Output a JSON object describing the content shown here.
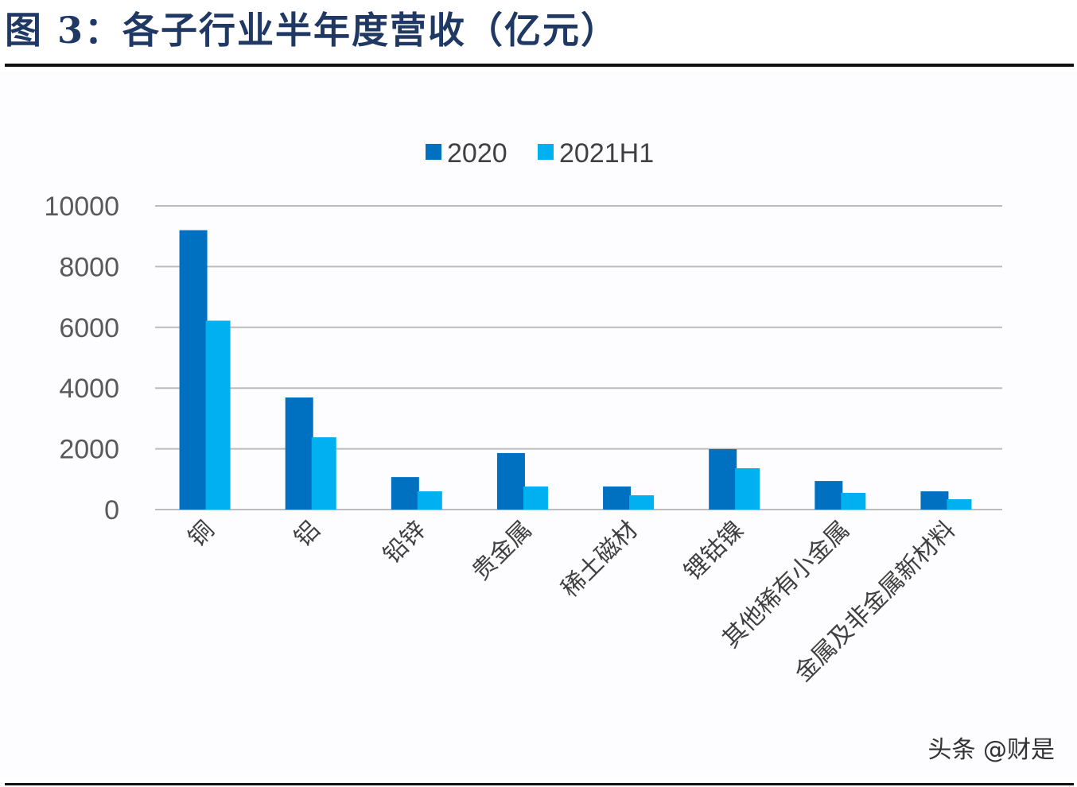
{
  "title": "图 3：各子行业半年度营收（亿元）",
  "watermark": "头条 @财是",
  "chart_data": {
    "type": "bar",
    "title": "",
    "xlabel": "",
    "ylabel": "",
    "ylim": [
      0,
      10000
    ],
    "yticks": [
      "0",
      "2000",
      "4000",
      "6000",
      "8000",
      "10000"
    ],
    "grid": true,
    "legend": "top-center",
    "categories": [
      "铜",
      "铝",
      "铅锌",
      "贵金属",
      "稀土磁材",
      "锂钴镍",
      "其他稀有小金属",
      "金属及非金属新材料"
    ],
    "series": [
      {
        "name": "2020",
        "color": "#0070C0",
        "values": [
          9200,
          3690,
          1070,
          1860,
          760,
          1990,
          940,
          600
        ]
      },
      {
        "name": "2021H1",
        "color": "#00B0F0",
        "values": [
          6220,
          2380,
          600,
          760,
          470,
          1360,
          550,
          340
        ]
      }
    ]
  }
}
